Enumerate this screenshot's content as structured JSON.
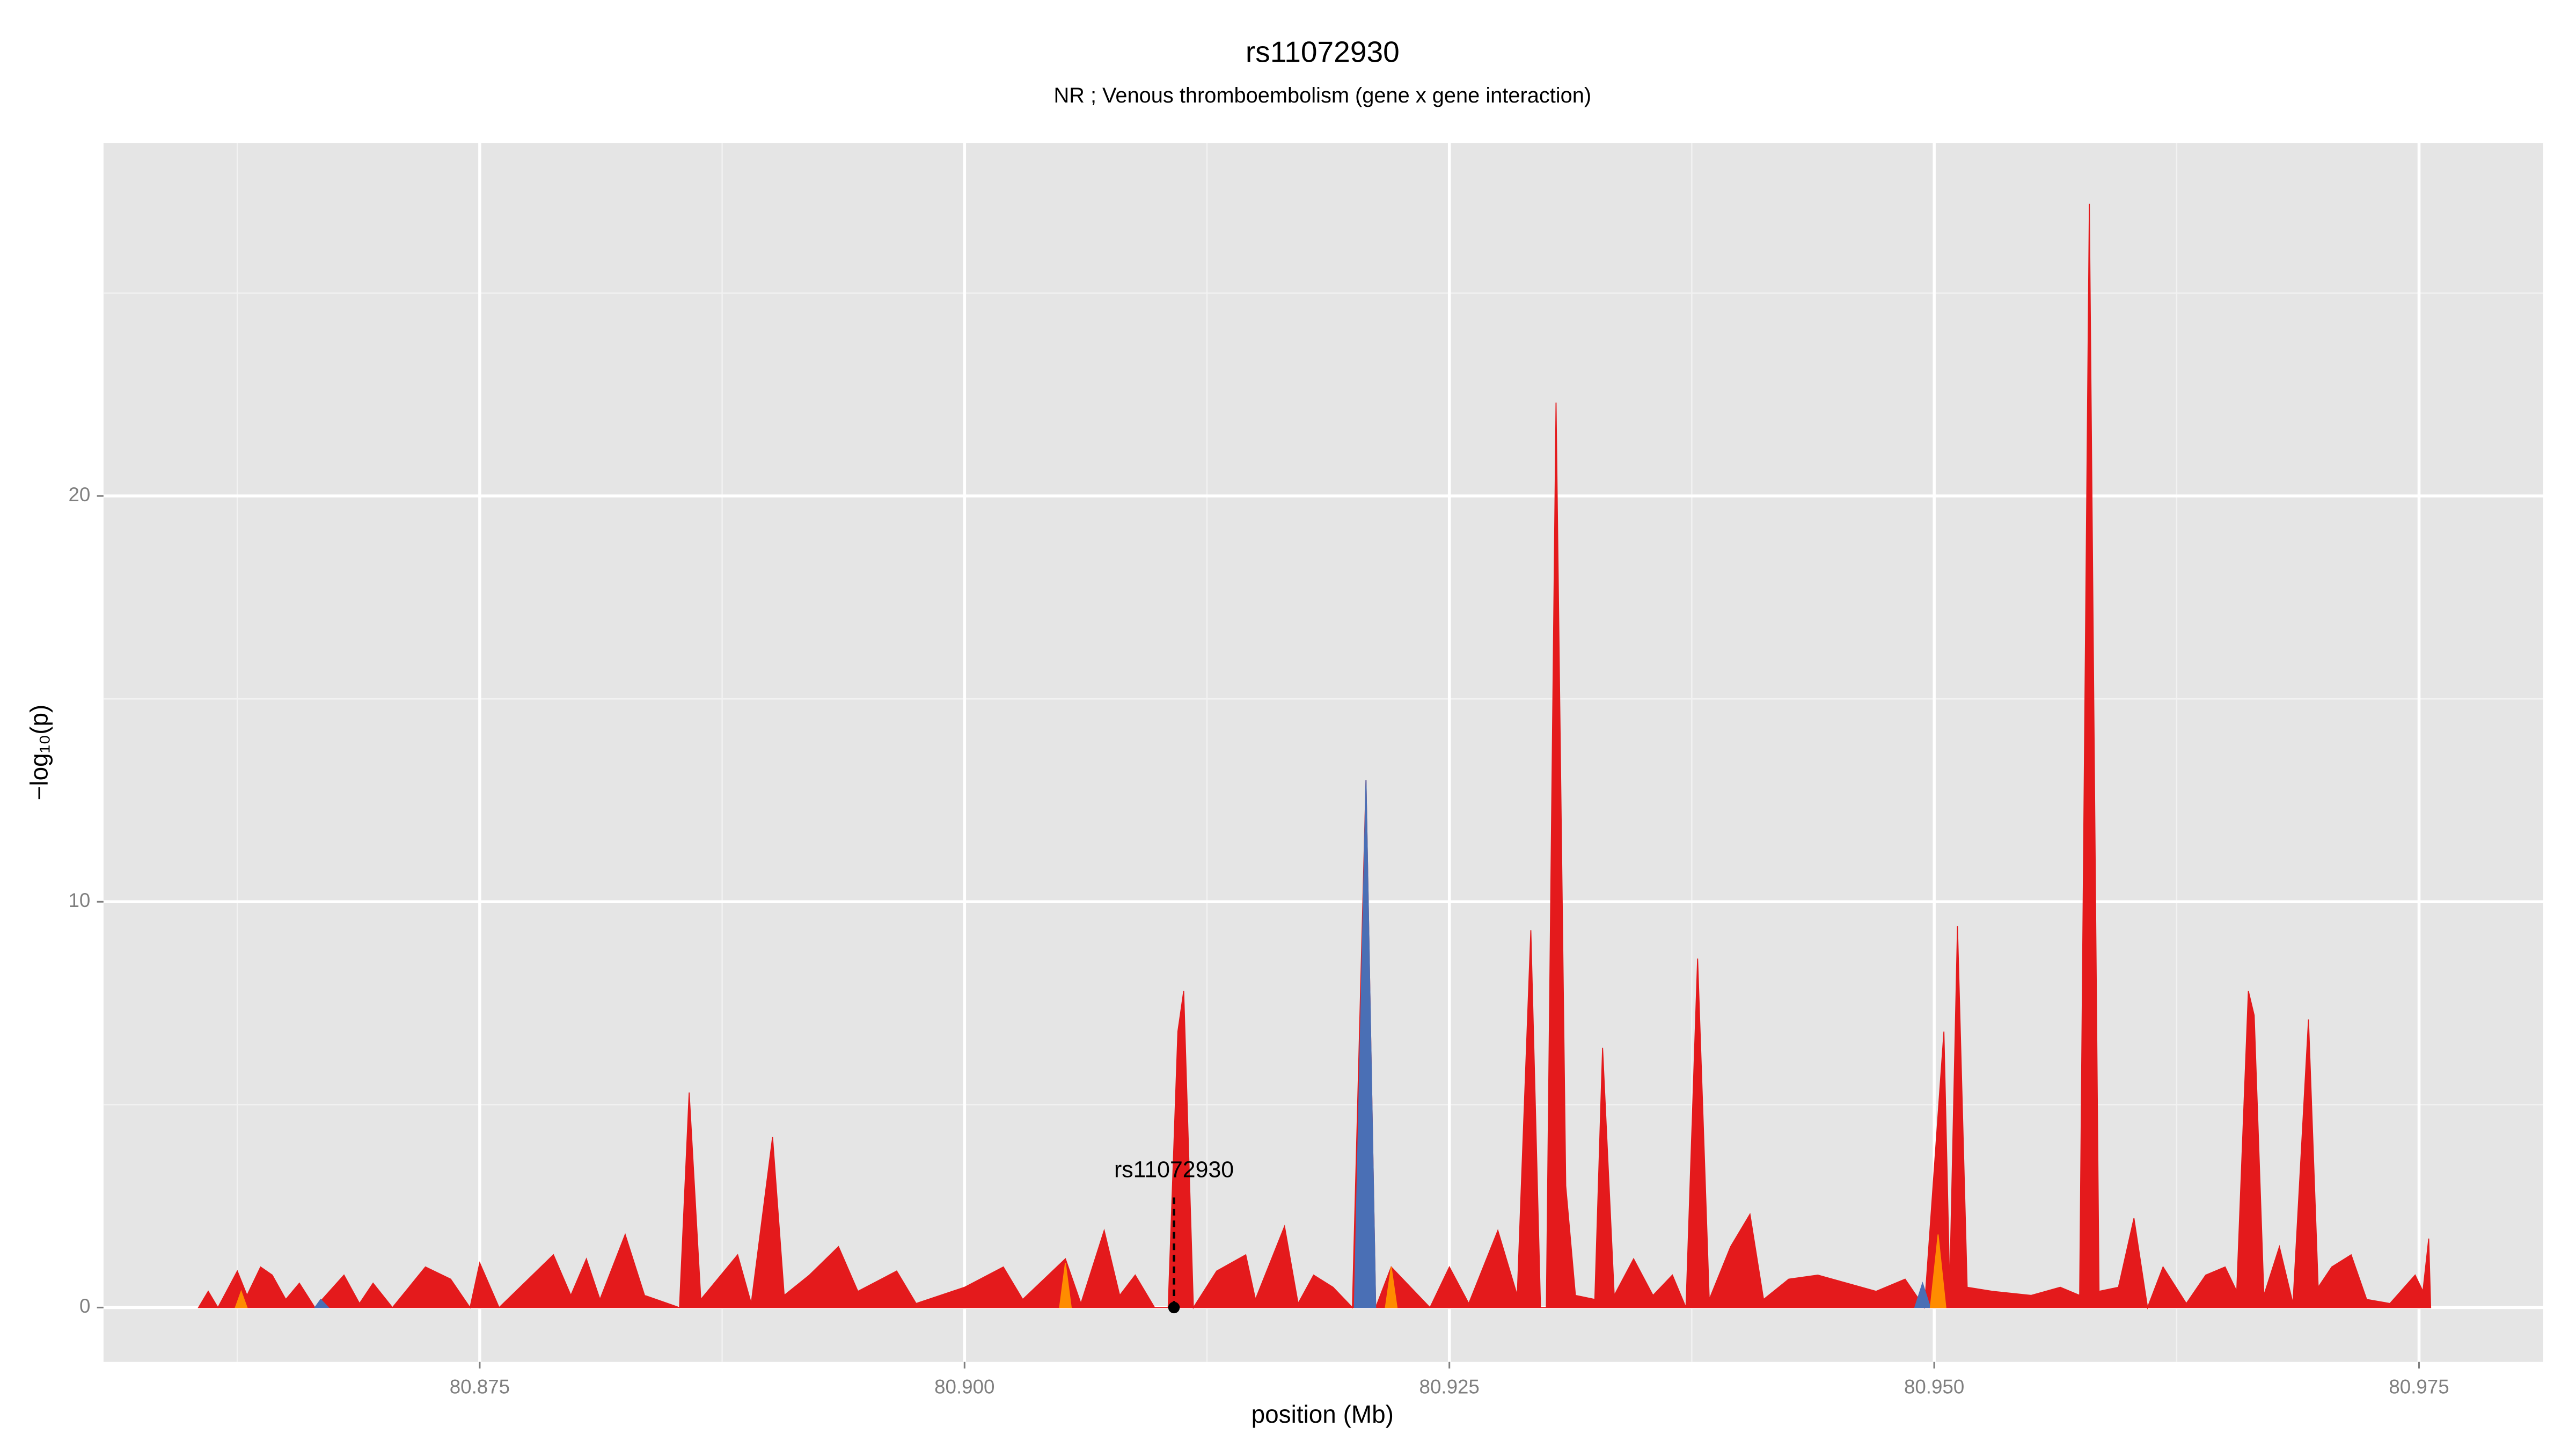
{
  "chart_data": {
    "type": "area",
    "title": "rs11072930",
    "subtitle": "NR ; Venous thromboembolism (gene x gene interaction)",
    "xlabel": "position (Mb)",
    "ylabel": "−log₁₀(p)",
    "xlim": [
      80.8556,
      80.9814
    ],
    "ylim": [
      -1.34,
      28.7
    ],
    "xticks": [
      {
        "value": 80.875,
        "label": "80.875"
      },
      {
        "value": 80.9,
        "label": "80.900"
      },
      {
        "value": 80.925,
        "label": "80.925"
      },
      {
        "value": 80.95,
        "label": "80.950"
      },
      {
        "value": 80.975,
        "label": "80.975"
      }
    ],
    "yticks": [
      0,
      10,
      20
    ],
    "xminor": [
      80.8625,
      80.8875,
      80.9125,
      80.9375,
      80.9625
    ],
    "yminor": [
      5,
      15,
      25
    ],
    "grid": true,
    "series": [
      {
        "color": "#e41a1c",
        "x": [
          80.8605,
          80.861,
          80.8615,
          80.8625,
          80.863,
          80.8637,
          80.8643,
          80.865,
          80.8657,
          80.8665,
          80.868,
          80.8688,
          80.8695,
          80.8705,
          80.8722,
          80.8735,
          80.8745,
          80.875,
          80.876,
          80.8788,
          80.8797,
          80.8805,
          80.8812,
          80.8825,
          80.8835,
          80.8853,
          80.8858,
          80.8864,
          80.8883,
          80.889,
          80.8901,
          80.8907,
          80.892,
          80.8935,
          80.8945,
          80.8965,
          80.8975,
          80.9,
          80.902,
          80.903,
          80.9052,
          80.906,
          80.9072,
          80.908,
          80.9088,
          80.9098,
          80.9105,
          80.911,
          80.9113,
          80.9118,
          80.913,
          80.9145,
          80.915,
          80.9165,
          80.9172,
          80.918,
          80.919,
          80.92,
          80.9207,
          80.9212,
          80.922,
          80.923,
          80.924,
          80.925,
          80.926,
          80.9275,
          80.9285,
          80.9292,
          80.9297,
          80.93,
          80.9305,
          80.931,
          80.9315,
          80.9325,
          80.9329,
          80.9335,
          80.9345,
          80.9355,
          80.9365,
          80.9372,
          80.9378,
          80.9384,
          80.9395,
          80.9405,
          80.9412,
          80.9425,
          80.944,
          80.9455,
          80.947,
          80.9485,
          80.9495,
          80.9505,
          80.9508,
          80.9512,
          80.9517,
          80.953,
          80.955,
          80.9565,
          80.9575,
          80.958,
          80.9585,
          80.9595,
          80.9603,
          80.961,
          80.9618,
          80.963,
          80.964,
          80.965,
          80.9656,
          80.9662,
          80.9665,
          80.967,
          80.9678,
          80.9685,
          80.9693,
          80.9698,
          80.9705,
          80.9715,
          80.9723,
          80.9735,
          80.9748,
          80.9752,
          80.9755,
          80.9756
        ],
        "values": [
          0,
          0.4,
          0,
          0.9,
          0.3,
          1.0,
          0.8,
          0.2,
          0.6,
          0,
          0.8,
          0.1,
          0.6,
          0,
          1.0,
          0.7,
          0,
          1.1,
          0,
          1.3,
          0.3,
          1.2,
          0.2,
          1.8,
          0.3,
          0,
          5.3,
          0.2,
          1.3,
          0.1,
          4.2,
          0.3,
          0.8,
          1.5,
          0.4,
          0.9,
          0.1,
          0.5,
          1.0,
          0.2,
          1.2,
          0.1,
          1.9,
          0.3,
          0.8,
          0,
          0,
          6.8,
          7.8,
          0,
          0.9,
          1.3,
          0.2,
          2.0,
          0.1,
          0.8,
          0.5,
          0,
          13,
          0,
          1.0,
          0.5,
          0,
          1.0,
          0.1,
          1.9,
          0.3,
          9.3,
          0,
          0,
          22.3,
          3,
          0.3,
          0.2,
          6.4,
          0.3,
          1.2,
          0.3,
          0.8,
          0,
          8.6,
          0.2,
          1.5,
          2.3,
          0.2,
          0.7,
          0.8,
          0.6,
          0.4,
          0.7,
          0,
          6.8,
          0.5,
          9.4,
          0.5,
          0.4,
          0.3,
          0.5,
          0.3,
          27.2,
          0.4,
          0.5,
          2.2,
          0,
          1.0,
          0.1,
          0.8,
          1.0,
          0.4,
          7.8,
          7.2,
          0.3,
          1.5,
          0.1,
          7.1,
          0.5,
          1.0,
          1.3,
          0.2,
          0.1,
          0.8,
          0.4,
          1.7,
          0
        ]
      },
      {
        "color": "#4a6fb5",
        "x": [
          80.9201,
          80.9207,
          80.9212,
          80.9213,
          80.949,
          80.9494,
          80.9498,
          80.9499,
          80.8665,
          80.8668,
          80.8672
        ],
        "values": [
          0,
          13,
          0,
          null,
          0,
          0.6,
          0,
          null,
          0,
          0.2,
          0
        ]
      },
      {
        "color": "#ff8c00",
        "x": [
          80.8624,
          80.8627,
          80.863,
          80.8631,
          80.9049,
          80.9052,
          80.9055,
          80.9056,
          80.9217,
          80.922,
          80.9223,
          80.9224,
          80.9498,
          80.9502,
          80.9506
        ],
        "values": [
          0,
          0.4,
          0,
          null,
          0,
          1.1,
          0,
          null,
          0,
          1.0,
          0,
          null,
          0,
          1.8,
          0
        ]
      }
    ],
    "annotation": {
      "text": "rs11072930",
      "x": 80.9108,
      "y": 0
    }
  }
}
